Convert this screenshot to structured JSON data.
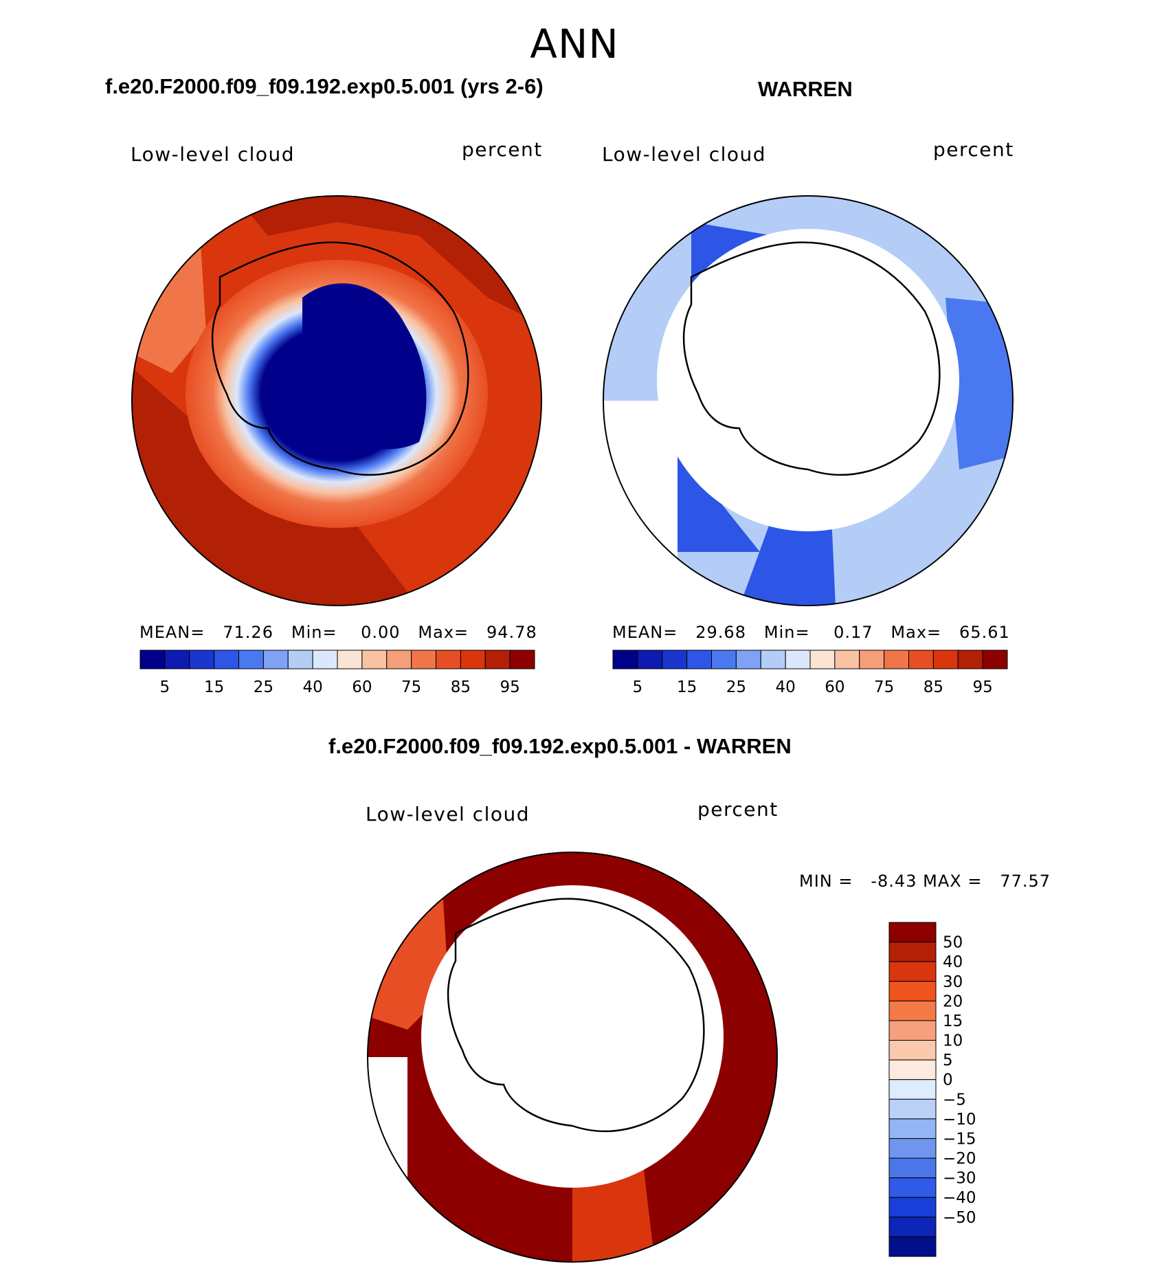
{
  "page": {
    "title": "ANN"
  },
  "panels": [
    {
      "id": "model",
      "heading": "f.e20.F2000.f09_f09.192.exp0.5.001 (yrs 2-6)",
      "variable": "Low-level cloud",
      "units": "percent",
      "stats": {
        "mean_label": "MEAN=",
        "mean": "71.26",
        "min_label": "Min=",
        "min": "0.00",
        "max_label": "Max=",
        "max": "94.78"
      }
    },
    {
      "id": "obs",
      "heading": "WARREN",
      "variable": "Low-level cloud",
      "units": "percent",
      "stats": {
        "mean_label": "MEAN=",
        "mean": "29.68",
        "min_label": "Min=",
        "min": "0.17",
        "max_label": "Max=",
        "max": "65.61"
      }
    },
    {
      "id": "diff",
      "heading": "f.e20.F2000.f09_f09.192.exp0.5.001 - WARREN",
      "variable": "Low-level cloud",
      "units": "percent",
      "stats": {
        "min_label": "MIN =",
        "min": "-8.43",
        "max_label": "MAX =",
        "max": "77.57"
      }
    }
  ],
  "chart_data": [
    {
      "type": "heatmap",
      "projection": "south-polar-stereographic",
      "title": "Low-level cloud",
      "units": "percent",
      "colorbar": {
        "orientation": "horizontal",
        "colors": [
          "#00008b",
          "#0d1bb0",
          "#1a36cf",
          "#2d55e6",
          "#4a78f0",
          "#7fa2f5",
          "#b4cdf7",
          "#dbe8fb",
          "#fbe4d4",
          "#f9c2a3",
          "#f59e7a",
          "#f07548",
          "#e84e24",
          "#d9360e",
          "#b22006",
          "#8c0000"
        ],
        "tick_labels": [
          "5",
          "15",
          "25",
          "40",
          "60",
          "75",
          "85",
          "95"
        ]
      },
      "values_summary": {
        "mean": 71.26,
        "min": 0.0,
        "max": 94.78
      }
    },
    {
      "type": "heatmap",
      "projection": "south-polar-stereographic",
      "title": "Low-level cloud",
      "units": "percent",
      "colorbar": {
        "orientation": "horizontal",
        "colors": [
          "#00008b",
          "#0d1bb0",
          "#1a36cf",
          "#2d55e6",
          "#4a78f0",
          "#7fa2f5",
          "#b4cdf7",
          "#dbe8fb",
          "#fbe4d4",
          "#f9c2a3",
          "#f59e7a",
          "#f07548",
          "#e84e24",
          "#d9360e",
          "#b22006",
          "#8c0000"
        ],
        "tick_labels": [
          "5",
          "15",
          "25",
          "40",
          "60",
          "75",
          "85",
          "95"
        ]
      },
      "values_summary": {
        "mean": 29.68,
        "min": 0.17,
        "max": 65.61
      }
    },
    {
      "type": "heatmap",
      "projection": "south-polar-stereographic",
      "title": "Low-level cloud",
      "units": "percent",
      "colorbar": {
        "orientation": "vertical",
        "colors": [
          "#8c0000",
          "#b22006",
          "#d9360e",
          "#f0541f",
          "#f47a48",
          "#f8a07e",
          "#fbc9ad",
          "#fdeadf",
          "#deecfb",
          "#b9d1f7",
          "#94b5f3",
          "#6f95ee",
          "#4a76ea",
          "#2f5be6",
          "#1a3fd8",
          "#0d26b8",
          "#00108a"
        ],
        "tick_labels": [
          "50",
          "40",
          "30",
          "20",
          "15",
          "10",
          "5",
          "0",
          "−5",
          "−10",
          "−15",
          "−20",
          "−30",
          "−40",
          "−50"
        ]
      },
      "values_summary": {
        "min": -8.43,
        "max": 77.57
      }
    }
  ],
  "colors": {
    "mask": "#ffffff",
    "coastline": "#000000",
    "model_ocean_dark": "#b22006",
    "model_ocean": "#d9360e",
    "model_interior": "#00008b",
    "obs_fill": "#b4cdf7",
    "obs_ring": "#2d55e6",
    "diff_fill": "#8c0000"
  }
}
